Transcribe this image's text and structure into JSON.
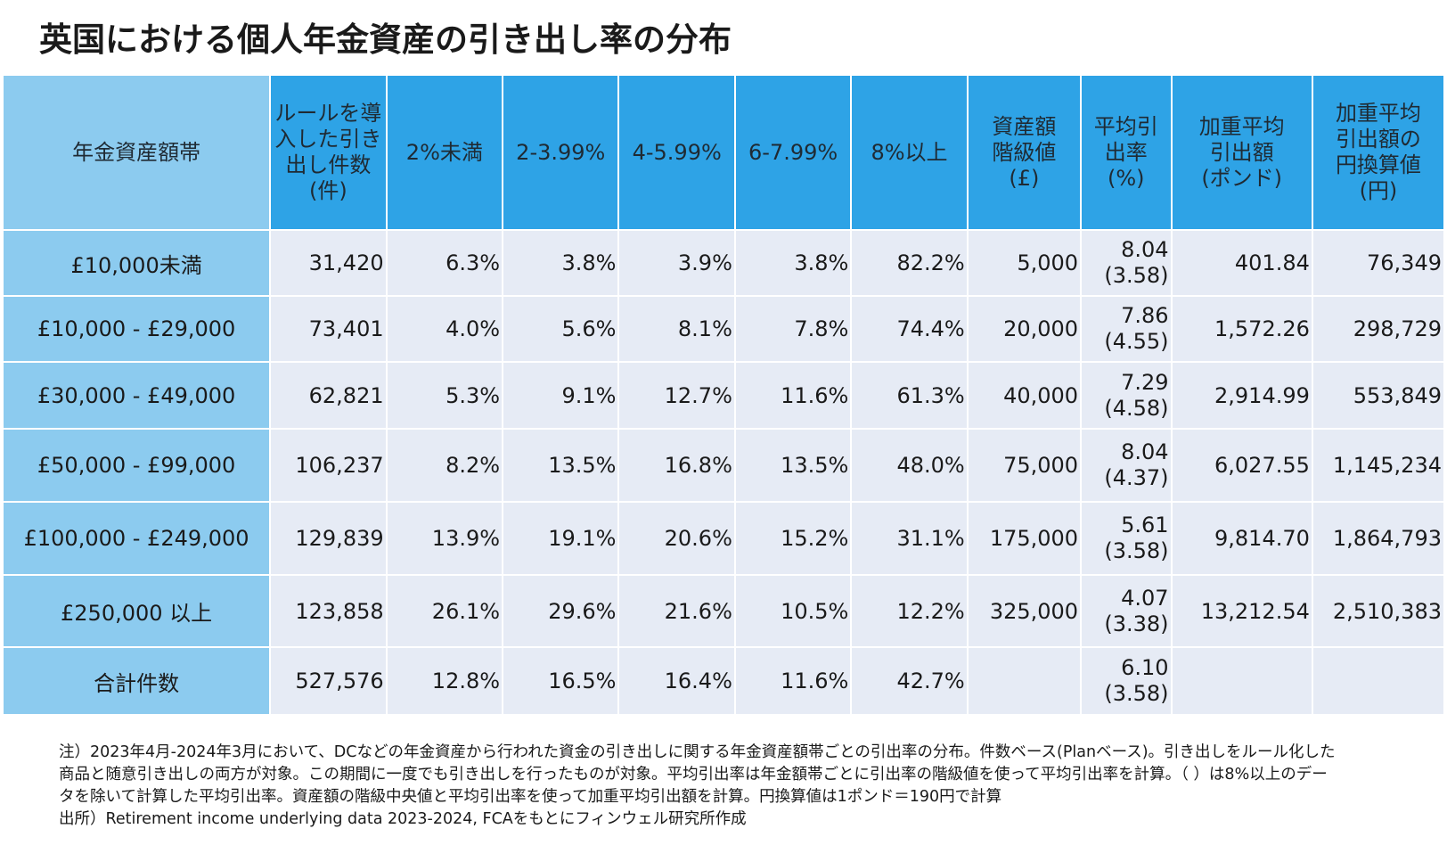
{
  "title": "英国における個人年金資産の引き出し率の分布",
  "table": {
    "headers": [
      {
        "lines": [
          "年金資産額帯"
        ]
      },
      {
        "lines": [
          "ルールを導",
          "入した引き",
          "出し件数",
          "(件)"
        ]
      },
      {
        "lines": [
          "2%未満"
        ]
      },
      {
        "lines": [
          "2-3.99%"
        ]
      },
      {
        "lines": [
          "4-5.99%"
        ]
      },
      {
        "lines": [
          "6-7.99%"
        ]
      },
      {
        "lines": [
          "8%以上"
        ]
      },
      {
        "lines": [
          "資産額",
          "階級値",
          "(£)"
        ]
      },
      {
        "lines": [
          "平均引",
          "出率",
          "(%)"
        ]
      },
      {
        "lines": [
          "加重平均",
          "引出額",
          "(ポンド)"
        ]
      },
      {
        "lines": [
          "加重平均",
          "引出額の",
          "円換算値",
          "(円)"
        ]
      }
    ],
    "rows": [
      {
        "band": "£10,000未満",
        "count": "31,420",
        "lt2": "6.3%",
        "r2_399": "3.8%",
        "r4_599": "3.9%",
        "r6_799": "3.8%",
        "ge8": "82.2%",
        "class_value": "5,000",
        "avg_rate": "8.04",
        "avg_rate_ex": "(3.58)",
        "weighted_gbp": "401.84",
        "weighted_jpy": "76,349"
      },
      {
        "band": "£10,000 - £29,000",
        "count": "73,401",
        "lt2": "4.0%",
        "r2_399": "5.6%",
        "r4_599": "8.1%",
        "r6_799": "7.8%",
        "ge8": "74.4%",
        "class_value": "20,000",
        "avg_rate": "7.86",
        "avg_rate_ex": "(4.55)",
        "weighted_gbp": "1,572.26",
        "weighted_jpy": "298,729"
      },
      {
        "band": "£30,000 - £49,000",
        "count": "62,821",
        "lt2": "5.3%",
        "r2_399": "9.1%",
        "r4_599": "12.7%",
        "r6_799": "11.6%",
        "ge8": "61.3%",
        "class_value": "40,000",
        "avg_rate": "7.29",
        "avg_rate_ex": "(4.58)",
        "weighted_gbp": "2,914.99",
        "weighted_jpy": "553,849"
      },
      {
        "band": "£50,000 - £99,000",
        "count": "106,237",
        "lt2": "8.2%",
        "r2_399": "13.5%",
        "r4_599": "16.8%",
        "r6_799": "13.5%",
        "ge8": "48.0%",
        "class_value": "75,000",
        "avg_rate": "8.04",
        "avg_rate_ex": "(4.37)",
        "weighted_gbp": "6,027.55",
        "weighted_jpy": "1,145,234"
      },
      {
        "band": "£100,000 - £249,000",
        "count": "129,839",
        "lt2": "13.9%",
        "r2_399": "19.1%",
        "r4_599": "20.6%",
        "r6_799": "15.2%",
        "ge8": "31.1%",
        "class_value": "175,000",
        "avg_rate": "5.61",
        "avg_rate_ex": "(3.58)",
        "weighted_gbp": "9,814.70",
        "weighted_jpy": "1,864,793"
      },
      {
        "band": "£250,000 以上",
        "count": "123,858",
        "lt2": "26.1%",
        "r2_399": "29.6%",
        "r4_599": "21.6%",
        "r6_799": "10.5%",
        "ge8": "12.2%",
        "class_value": "325,000",
        "avg_rate": "4.07",
        "avg_rate_ex": "(3.38)",
        "weighted_gbp": "13,212.54",
        "weighted_jpy": "2,510,383"
      },
      {
        "band": "合計件数",
        "count": "527,576",
        "lt2": "12.8%",
        "r2_399": "16.5%",
        "r4_599": "16.4%",
        "r6_799": "11.6%",
        "ge8": "42.7%",
        "class_value": "",
        "avg_rate": "6.10",
        "avg_rate_ex": "(3.58)",
        "weighted_gbp": "",
        "weighted_jpy": ""
      }
    ]
  },
  "notes": [
    "注）2023年4月-2024年3月において、DCなどの年金資産から行われた資金の引き出しに関する年金資産額帯ごとの引出率の分布。件数ベース(Planベース)。引き出しをルール化した",
    "商品と随意引き出しの両方が対象。この期間に一度でも引き出しを行ったものが対象。平均引出率は年金額帯ごとに引出率の階級値を使って平均引出率を計算。（ ）は8%以上のデー",
    "タを除いて計算した平均引出率。資産額の階級中央値と平均引出率を使って加重平均引出額を計算。円換算値は1ポンド＝190円で計算",
    "出所）Retirement income underlying data 2023-2024, FCAをもとにフィンウェル研究所作成"
  ]
}
